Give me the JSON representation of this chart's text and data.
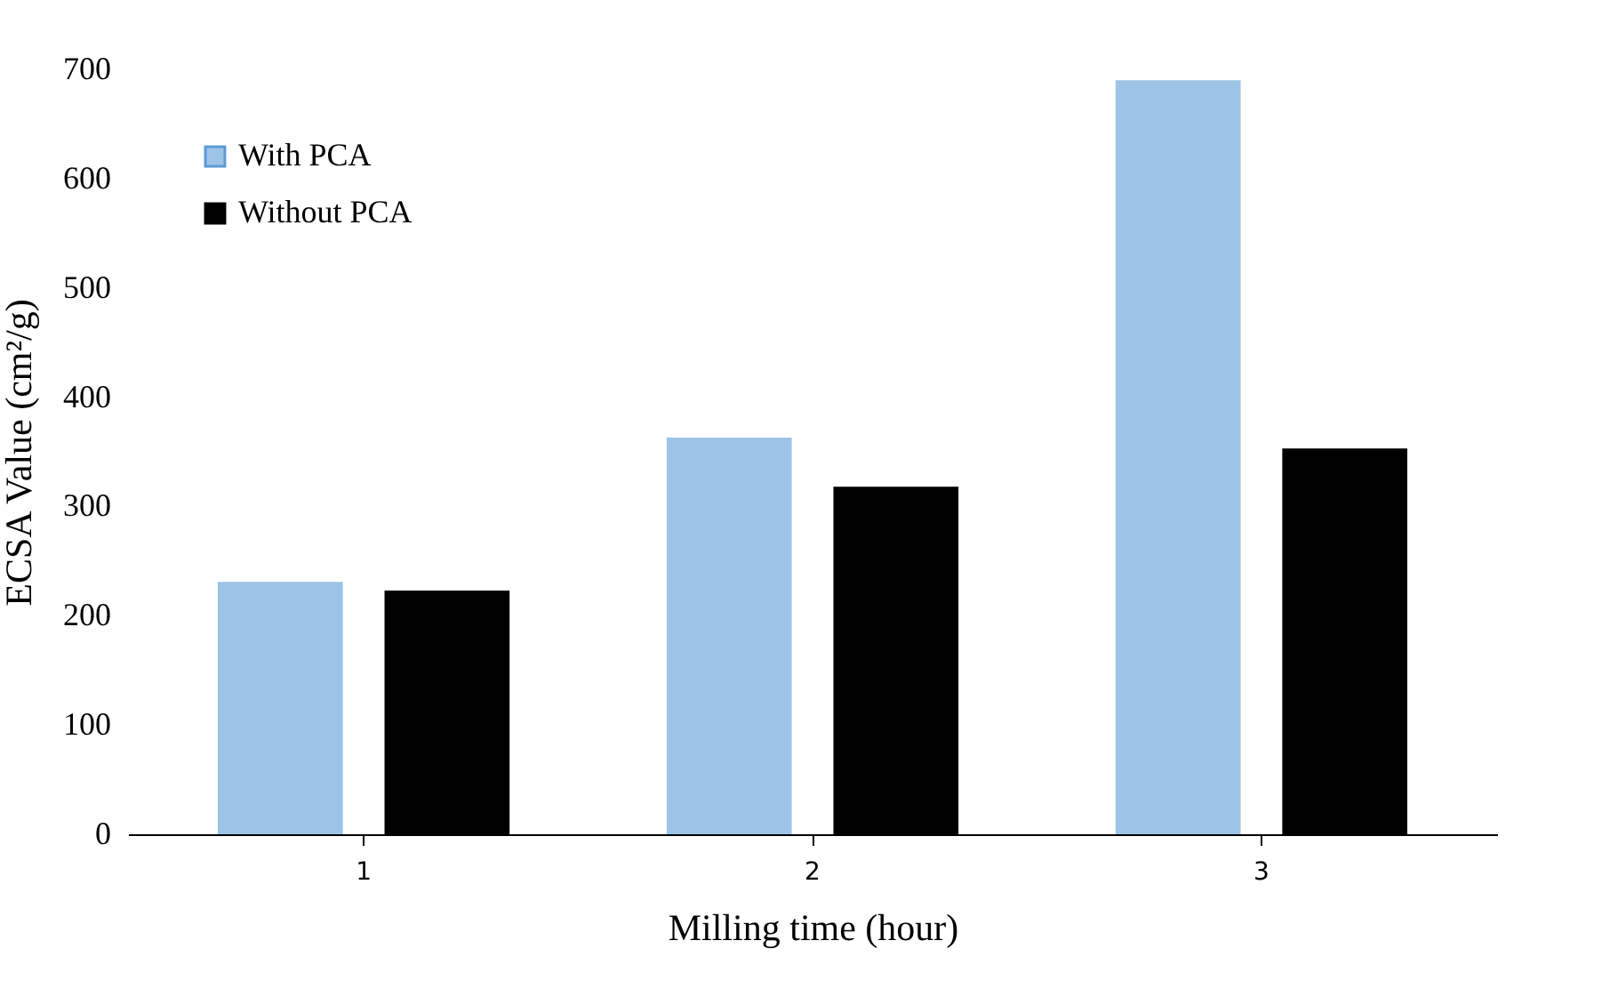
{
  "chart_data": {
    "type": "bar",
    "xlabel": "Milling time (hour)",
    "ylabel": "ECSA Value (cm²/g)",
    "categories": [
      "1",
      "2",
      "3"
    ],
    "series": [
      {
        "name": "With PCA",
        "color": "#9dc3e6",
        "values": [
          231,
          363,
          690
        ]
      },
      {
        "name": "Without PCA",
        "color": "#000000",
        "values": [
          223,
          318,
          353
        ]
      }
    ],
    "ylim": [
      0,
      700
    ],
    "yticks": [
      0,
      100,
      200,
      300,
      400,
      500,
      600,
      700
    ],
    "grid": false,
    "legend": "top left"
  }
}
